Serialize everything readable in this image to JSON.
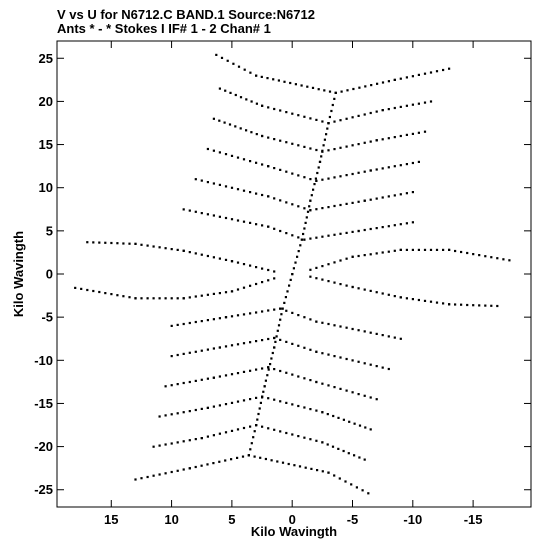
{
  "chart_data": {
    "type": "scatter",
    "title": "V vs U for N6712.C BAND.1   Source:N6712",
    "subtitle": "Ants * - *     Stokes I   IF# 1 - 2   Chan# 1",
    "xlabel": "Kilo Wavingth",
    "ylabel": "Kilo Wavingth",
    "xlim": [
      19.5,
      -19.8
    ],
    "ylim": [
      -27,
      27
    ],
    "x_reversed": true,
    "xticks": [
      15,
      10,
      5,
      0,
      -5,
      -10,
      -15
    ],
    "xtick_labels": [
      "15",
      "10",
      "5",
      "0",
      "-5",
      "-10",
      "-15"
    ],
    "yticks": [
      -25,
      -20,
      -15,
      -10,
      -5,
      0,
      5,
      10,
      15,
      20,
      25
    ],
    "ytick_labels": [
      "-25",
      "-20",
      "-15",
      "-10",
      "-5",
      "0",
      "5",
      "10",
      "15",
      "20",
      "25"
    ],
    "grid": false,
    "marker_color": "#000000",
    "tracks": [
      {
        "name": "arm-upper-center",
        "points": [
          [
            0.0,
            0.0
          ],
          [
            -0.8,
            4.0
          ],
          [
            -1.5,
            8.5
          ],
          [
            -2.3,
            13.0
          ],
          [
            -3.0,
            17.5
          ],
          [
            -3.6,
            21.0
          ]
        ]
      },
      {
        "name": "arm-lower-center",
        "points": [
          [
            0.0,
            0.0
          ],
          [
            0.8,
            -4.0
          ],
          [
            1.5,
            -8.5
          ],
          [
            2.3,
            -13.0
          ],
          [
            3.0,
            -17.5
          ],
          [
            3.6,
            -21.0
          ]
        ]
      },
      {
        "name": "arm-left",
        "points": [
          [
            1.5,
            0.3
          ],
          [
            5.0,
            1.5
          ],
          [
            9.0,
            2.7
          ],
          [
            13.0,
            3.5
          ],
          [
            17.0,
            3.7
          ]
        ]
      },
      {
        "name": "arm-right",
        "points": [
          [
            -1.5,
            -0.3
          ],
          [
            -5.0,
            -1.5
          ],
          [
            -9.0,
            -2.7
          ],
          [
            -13.0,
            -3.5
          ],
          [
            -17.0,
            -3.7
          ]
        ]
      },
      {
        "name": "arm-left-low",
        "points": [
          [
            1.5,
            -0.5
          ],
          [
            5.0,
            -2.0
          ],
          [
            9.0,
            -2.8
          ],
          [
            13.0,
            -2.8
          ],
          [
            18.0,
            -1.6
          ]
        ]
      },
      {
        "name": "arm-right-high",
        "points": [
          [
            -1.5,
            0.5
          ],
          [
            -5.0,
            2.0
          ],
          [
            -9.0,
            2.8
          ],
          [
            -13.0,
            2.8
          ],
          [
            -18.0,
            1.6
          ]
        ]
      },
      {
        "name": "chevron-top-1",
        "points": [
          [
            6.3,
            25.4
          ],
          [
            3.0,
            23.0
          ],
          [
            -3.6,
            21.0
          ],
          [
            -8.5,
            22.5
          ],
          [
            -13.0,
            23.8
          ]
        ]
      },
      {
        "name": "chevron-top-2",
        "points": [
          [
            6.0,
            21.5
          ],
          [
            2.5,
            19.5
          ],
          [
            -3.0,
            17.5
          ],
          [
            -7.5,
            19.0
          ],
          [
            -11.5,
            20.0
          ]
        ]
      },
      {
        "name": "chevron-top-3",
        "points": [
          [
            6.5,
            18.0
          ],
          [
            2.5,
            16.0
          ],
          [
            -2.5,
            14.2
          ],
          [
            -7.0,
            15.5
          ],
          [
            -11.0,
            16.5
          ]
        ]
      },
      {
        "name": "chevron-top-4",
        "points": [
          [
            7.0,
            14.5
          ],
          [
            2.0,
            12.5
          ],
          [
            -2.0,
            10.8
          ],
          [
            -6.5,
            12.0
          ],
          [
            -10.5,
            13.0
          ]
        ]
      },
      {
        "name": "chevron-top-5",
        "points": [
          [
            8.0,
            11.0
          ],
          [
            2.0,
            9.0
          ],
          [
            -1.5,
            7.4
          ],
          [
            -6.0,
            8.5
          ],
          [
            -10.0,
            9.5
          ]
        ]
      },
      {
        "name": "chevron-top-6",
        "points": [
          [
            9.0,
            7.5
          ],
          [
            2.0,
            5.5
          ],
          [
            -1.0,
            4.0
          ],
          [
            -5.5,
            5.0
          ],
          [
            -10.0,
            6.0
          ]
        ]
      },
      {
        "name": "chevron-bot-1",
        "points": [
          [
            -6.3,
            -25.4
          ],
          [
            -3.0,
            -23.0
          ],
          [
            3.6,
            -21.0
          ],
          [
            8.5,
            -22.5
          ],
          [
            13.0,
            -23.8
          ]
        ]
      },
      {
        "name": "chevron-bot-2",
        "points": [
          [
            -6.0,
            -21.5
          ],
          [
            -2.5,
            -19.5
          ],
          [
            3.0,
            -17.5
          ],
          [
            7.5,
            -19.0
          ],
          [
            11.5,
            -20.0
          ]
        ]
      },
      {
        "name": "chevron-bot-3",
        "points": [
          [
            -6.5,
            -18.0
          ],
          [
            -2.5,
            -16.0
          ],
          [
            2.5,
            -14.2
          ],
          [
            7.0,
            -15.5
          ],
          [
            11.0,
            -16.5
          ]
        ]
      },
      {
        "name": "chevron-bot-4",
        "points": [
          [
            -7.0,
            -14.5
          ],
          [
            -2.0,
            -12.5
          ],
          [
            2.0,
            -10.8
          ],
          [
            6.5,
            -12.0
          ],
          [
            10.5,
            -13.0
          ]
        ]
      },
      {
        "name": "chevron-bot-5",
        "points": [
          [
            -8.0,
            -11.0
          ],
          [
            -2.0,
            -9.0
          ],
          [
            1.5,
            -7.4
          ],
          [
            6.0,
            -8.5
          ],
          [
            10.0,
            -9.5
          ]
        ]
      },
      {
        "name": "chevron-bot-6",
        "points": [
          [
            -9.0,
            -7.5
          ],
          [
            -2.0,
            -5.5
          ],
          [
            1.0,
            -4.0
          ],
          [
            5.5,
            -5.0
          ],
          [
            10.0,
            -6.0
          ]
        ]
      }
    ]
  }
}
